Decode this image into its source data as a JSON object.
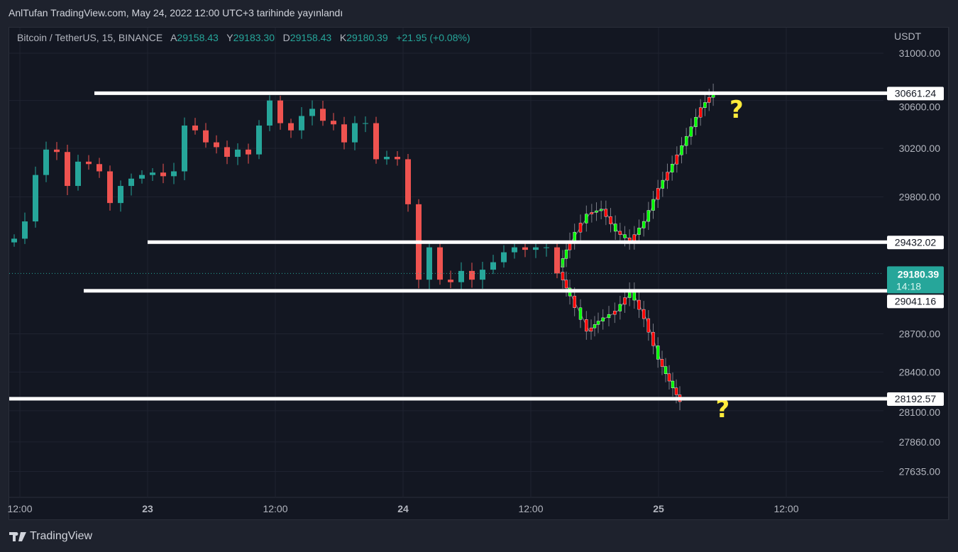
{
  "header": {
    "published": "AnlTufan TradingView.com, May 24, 2022 12:00 UTC+3 tarihinde yayınlandı"
  },
  "legend": {
    "symbol": "Bitcoin / TetherUS, 15, BINANCE",
    "o_label": "A",
    "o": "29158.43",
    "h_label": "Y",
    "h": "29183.30",
    "l_label": "D",
    "l": "29158.43",
    "c_label": "K",
    "c": "29180.39",
    "change": "+21.95 (+0.08%)"
  },
  "branding": {
    "logo_text": "TradingView"
  },
  "colors": {
    "up": "#26a69a",
    "down": "#ef5350",
    "proj_up": "#00ff00",
    "proj_down": "#ff0000",
    "level_line": "#ffffff",
    "question": "#ffeb3b",
    "background": "#131722"
  },
  "chart_data": {
    "type": "candlestick",
    "currency": "USDT",
    "y_scale": "log",
    "ylim": [
      27440,
      31224
    ],
    "grid": true,
    "y_ticks": [
      "31000.00",
      "30600.00",
      "30200.00",
      "29800.00",
      "28700.00",
      "28400.00",
      "28100.00",
      "27860.00",
      "27635.00"
    ],
    "x_ticks": [
      {
        "label": "12:00",
        "t": "2022-05-22 12:00"
      },
      {
        "label": "23",
        "t": "2022-05-23 00:00",
        "bold": true
      },
      {
        "label": "12:00",
        "t": "2022-05-23 12:00"
      },
      {
        "label": "24",
        "t": "2022-05-24 00:00",
        "bold": true
      },
      {
        "label": "12:00",
        "t": "2022-05-24 12:00"
      },
      {
        "label": "25",
        "t": "2022-05-25 00:00",
        "bold": true
      },
      {
        "label": "12:00",
        "t": "2022-05-25 12:00"
      }
    ],
    "candles_start": "2022-05-22 11:00",
    "candles_interval_hours": 1,
    "closes": [
      29460,
      29600,
      29980,
      30190,
      30170,
      29890,
      30090,
      30070,
      30010,
      29750,
      29890,
      29950,
      29980,
      30000,
      29970,
      30010,
      30390,
      30350,
      30250,
      30210,
      30130,
      30190,
      30150,
      30390,
      30600,
      30410,
      30350,
      30470,
      30530,
      30430,
      30400,
      30250,
      30410,
      30410,
      30110,
      30130,
      30110,
      29740,
      29130,
      29390,
      29130,
      29110,
      29200,
      29130,
      29210,
      29270,
      29350,
      29390,
      29370,
      29390,
      29390,
      29180
    ],
    "last_price": {
      "value": "29180.39",
      "countdown": "14:18"
    },
    "levels": [
      {
        "value": 30661.24,
        "label": "30661.24",
        "from": "2022-05-22 19:00"
      },
      {
        "value": 29432.02,
        "label": "29432.02",
        "from": "2022-05-23 00:00"
      },
      {
        "value": 29041.16,
        "label": "29041.16",
        "from": "2022-05-22 18:00"
      },
      {
        "value": 28192.57,
        "label": "28192.57",
        "from": "2022-05-22 11:00"
      }
    ],
    "projections": [
      {
        "scenario": "up",
        "points": [
          [
            "2022-05-24 14:50",
            29230
          ],
          [
            "2022-05-24 15:50",
            29440
          ],
          [
            "2022-05-24 17:30",
            29660
          ],
          [
            "2022-05-24 18:50",
            29700
          ],
          [
            "2022-05-24 20:10",
            29520
          ],
          [
            "2022-05-24 21:30",
            29440
          ],
          [
            "2022-05-24 22:50",
            29600
          ],
          [
            "2022-05-25 00:10",
            29870
          ],
          [
            "2022-05-25 01:30",
            30070
          ],
          [
            "2022-05-25 02:50",
            30300
          ],
          [
            "2022-05-25 04:10",
            30540
          ],
          [
            "2022-05-25 05:20",
            30670
          ]
        ],
        "annotation": "?"
      },
      {
        "scenario": "down",
        "points": [
          [
            "2022-05-24 14:50",
            29190
          ],
          [
            "2022-05-24 15:50",
            29000
          ],
          [
            "2022-05-24 17:30",
            28720
          ],
          [
            "2022-05-24 18:30",
            28800
          ],
          [
            "2022-05-24 20:10",
            28880
          ],
          [
            "2022-05-24 21:30",
            29040
          ],
          [
            "2022-05-24 22:50",
            28820
          ],
          [
            "2022-05-25 00:10",
            28500
          ],
          [
            "2022-05-25 01:10",
            28330
          ],
          [
            "2022-05-25 02:10",
            28170
          ]
        ],
        "annotation": "?"
      }
    ]
  }
}
